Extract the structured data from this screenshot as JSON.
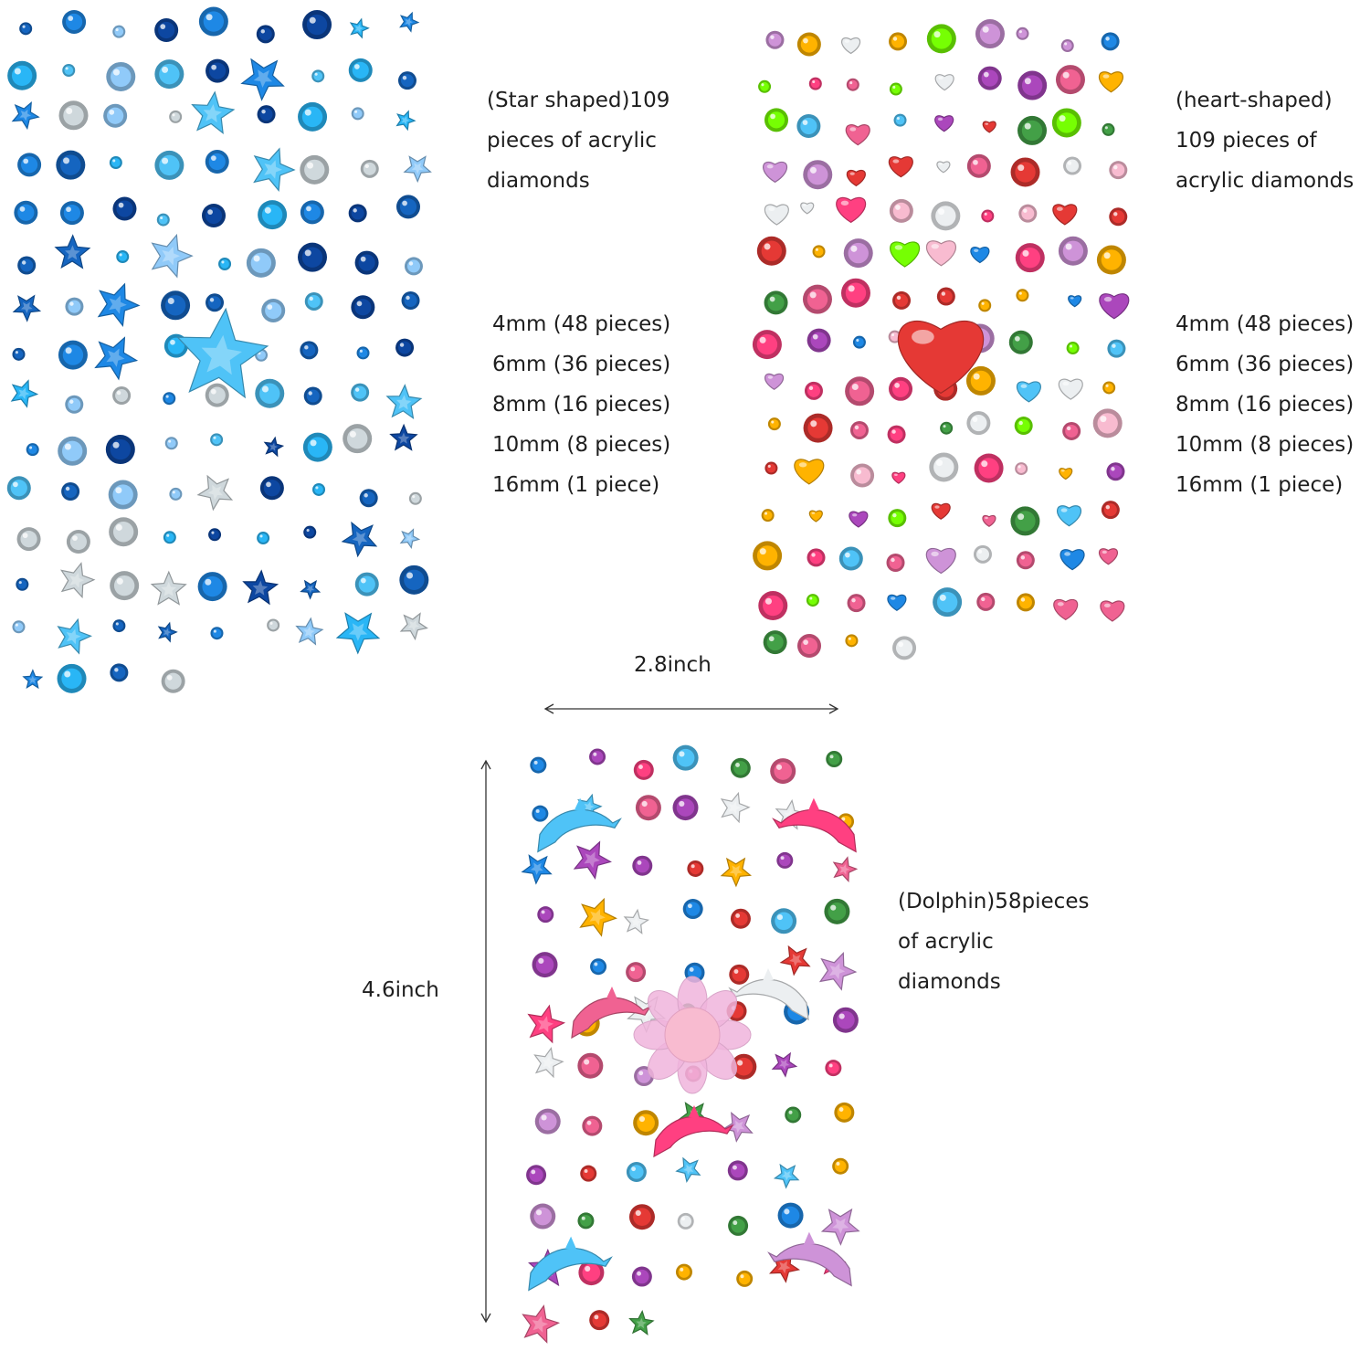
{
  "star_sheet": {
    "title": [
      "(Star shaped)109",
      "pieces of acrylic",
      "diamonds"
    ],
    "sizes": [
      "4mm (48 pieces)",
      "6mm (36 pieces)",
      "8mm (16 pieces)",
      "10mm (8 pieces)",
      "16mm (1 piece)"
    ],
    "palette": [
      "#1565c0",
      "#0d47a1",
      "#29b6f6",
      "#4fc3f7",
      "#90caf9",
      "#cfd8dc",
      "#1e88e5"
    ],
    "icon": "star-gem-icon"
  },
  "heart_sheet": {
    "title": [
      "(heart-shaped)",
      "109 pieces of",
      "acrylic diamonds"
    ],
    "sizes": [
      "4mm (48 pieces)",
      "6mm (36 pieces)",
      "8mm (16 pieces)",
      "10mm (8 pieces)",
      "16mm (1 piece)"
    ],
    "palette": [
      "#e53935",
      "#f06292",
      "#ff4081",
      "#ffb300",
      "#43a047",
      "#76ff03",
      "#1e88e5",
      "#4fc3f7",
      "#ab47bc",
      "#ce93d8",
      "#f8bbd0",
      "#eceff1"
    ],
    "icon": "heart-gem-icon"
  },
  "dolphin_sheet": {
    "title": [
      "(Dolphin)58pieces",
      "of acrylic",
      "diamonds"
    ],
    "palette": [
      "#f06292",
      "#ff4081",
      "#e53935",
      "#ffb300",
      "#43a047",
      "#1e88e5",
      "#4fc3f7",
      "#ab47bc",
      "#ce93d8",
      "#eceff1"
    ],
    "icon": "dolphin-gem-icon"
  },
  "dimensions": {
    "width_label": "2.8inch",
    "height_label": "4.6inch"
  }
}
